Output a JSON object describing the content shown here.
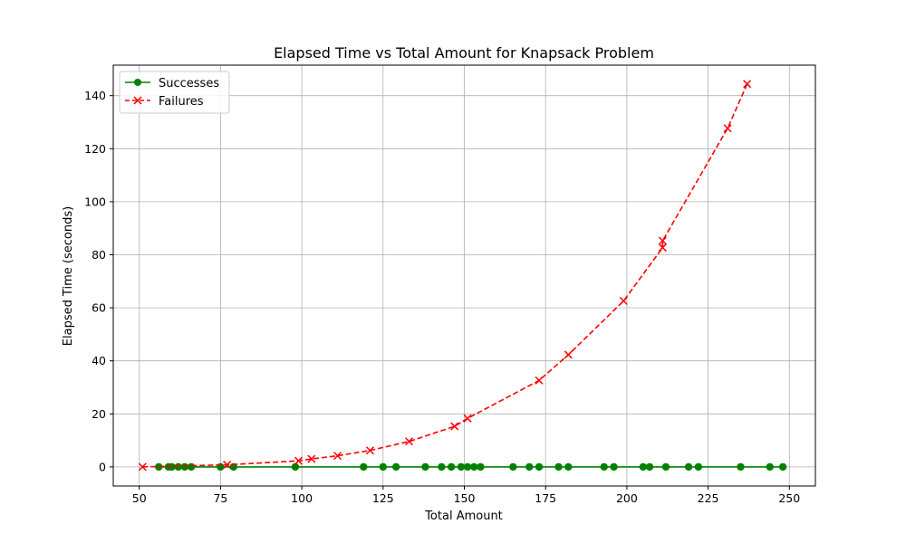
{
  "chart_data": {
    "type": "line",
    "title": "Elapsed Time vs Total Amount for Knapsack Problem",
    "xlabel": "Total Amount",
    "ylabel": "Elapsed Time (seconds)",
    "xlim": [
      42,
      258
    ],
    "ylim": [
      -7.2,
      151.5
    ],
    "xticks": [
      50,
      75,
      100,
      125,
      150,
      175,
      200,
      225,
      250
    ],
    "yticks": [
      0,
      20,
      40,
      60,
      80,
      100,
      120,
      140
    ],
    "grid": true,
    "legend_position": "top-left",
    "series": [
      {
        "name": "Successes",
        "color": "#008000",
        "marker": "circle",
        "line_style": "solid",
        "x": [
          56,
          59,
          60,
          62,
          64,
          66,
          75,
          79,
          98,
          119,
          125,
          129,
          138,
          143,
          146,
          149,
          151,
          153,
          155,
          165,
          170,
          173,
          179,
          182,
          193,
          196,
          205,
          207,
          212,
          219,
          222,
          235,
          244,
          248
        ],
        "y": [
          0,
          0,
          0,
          0,
          0,
          0,
          0,
          0,
          0,
          0,
          0,
          0,
          0,
          0,
          0,
          0,
          0,
          0,
          0,
          0,
          0,
          0,
          0,
          0,
          0,
          0,
          0,
          0,
          0,
          0,
          0,
          0,
          0,
          0
        ]
      },
      {
        "name": "Failures",
        "color": "#ff0000",
        "marker": "x",
        "line_style": "dashed",
        "x": [
          51,
          77,
          99,
          103,
          111,
          121,
          133,
          147,
          151,
          173,
          182,
          199,
          211,
          211,
          231,
          237
        ],
        "y": [
          0,
          0.8,
          2.3,
          3.0,
          4.2,
          6.2,
          9.6,
          15.3,
          18.3,
          32.6,
          42.3,
          62.6,
          82.7,
          85.3,
          127.7,
          144.4
        ]
      }
    ]
  }
}
